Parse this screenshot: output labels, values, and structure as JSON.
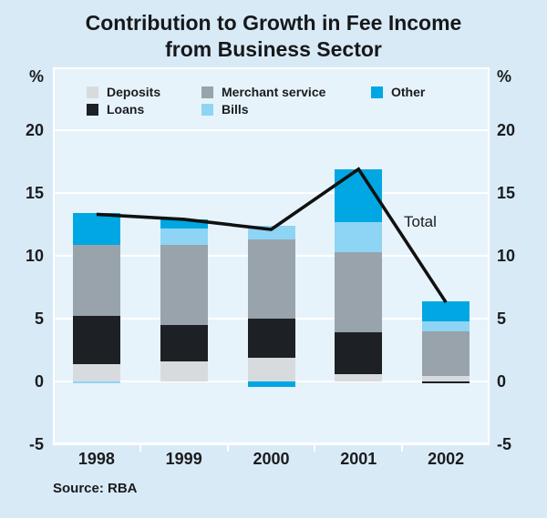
{
  "title": {
    "line1": "Contribution to Growth in Fee Income",
    "line2": "from Business Sector"
  },
  "axis": {
    "unit_left": "%",
    "unit_right": "%"
  },
  "legend": {
    "items": [
      {
        "label": "Deposits",
        "series": "Deposits",
        "col": 0,
        "row": 0
      },
      {
        "label": "Loans",
        "series": "Loans",
        "col": 0,
        "row": 1
      },
      {
        "label": "Merchant service",
        "series": "Merchant service",
        "col": 1,
        "row": 0
      },
      {
        "label": "Bills",
        "series": "Bills",
        "col": 1,
        "row": 1
      },
      {
        "label": "Other",
        "series": "Other",
        "col": 2,
        "row": 0
      }
    ]
  },
  "total_label": "Total",
  "source_note": "Source: RBA",
  "colors": {
    "background": "#d9eaf7",
    "plot_background": "#e7f3fb",
    "gridline": "#ffffff",
    "text": "#1a1c1e",
    "deposits": "#d8dbde",
    "loans": "#1d2126",
    "merchant_service": "#98a3ab",
    "bills": "#8ed4f4",
    "other": "#00a7e2",
    "total_line": "#111111"
  },
  "chart_data": {
    "type": "bar",
    "subtype": "stacked-bars-with-total-line",
    "title": "Contribution to Growth in Fee Income from Business Sector",
    "ylabel": "%",
    "ylim": [
      -5,
      25
    ],
    "yticks": [
      20,
      15,
      10,
      5,
      0,
      -5
    ],
    "grid": true,
    "legend_position": "top-inside",
    "categories": [
      "1998",
      "1999",
      "2000",
      "2001",
      "2002"
    ],
    "series": [
      {
        "name": "Deposits",
        "color": "#d8dbde",
        "values": [
          1.4,
          1.6,
          1.9,
          0.6,
          0.4
        ]
      },
      {
        "name": "Loans",
        "color": "#1d2126",
        "values": [
          3.8,
          2.9,
          3.1,
          3.3,
          -0.15
        ]
      },
      {
        "name": "Merchant service",
        "color": "#98a3ab",
        "values": [
          5.7,
          6.4,
          6.3,
          6.4,
          3.6
        ]
      },
      {
        "name": "Bills",
        "color": "#8ed4f4",
        "values": [
          -0.15,
          1.3,
          1.1,
          2.35,
          0.75
        ]
      },
      {
        "name": "Other",
        "color": "#00a7e2",
        "values": [
          2.5,
          0.7,
          -0.4,
          4.25,
          1.65
        ]
      }
    ],
    "line_series": {
      "name": "Total",
      "color": "#111111",
      "values": [
        13.3,
        12.9,
        12.1,
        16.9,
        6.3
      ]
    }
  }
}
